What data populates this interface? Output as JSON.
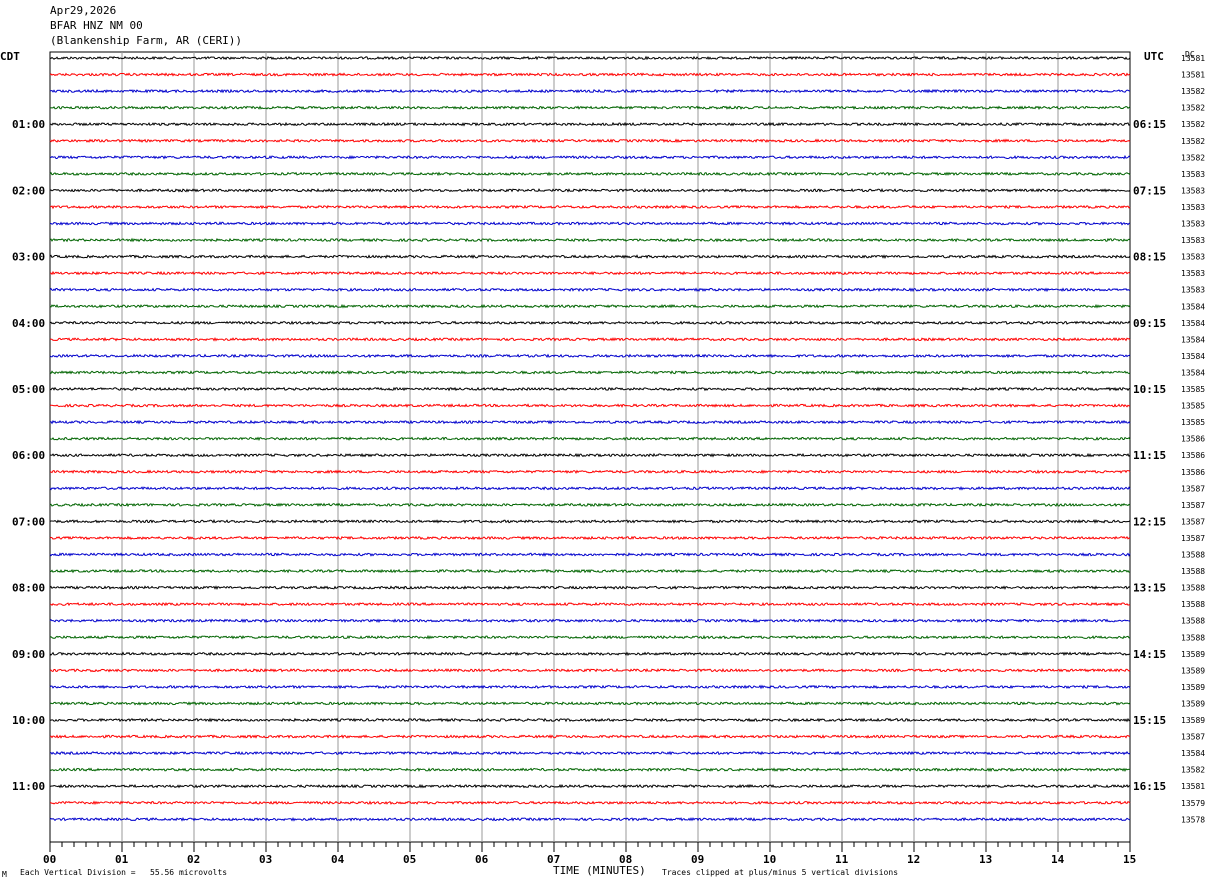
{
  "header": {
    "date": "Apr29,2026",
    "station": "BFAR HNZ NM 00",
    "site": "(Blankenship Farm, AR (CERI))"
  },
  "left_label": "CDT",
  "right_label": "UTC",
  "dc_label": "DC",
  "footer": {
    "corner_mark": "M",
    "scale": "Each Vertical Division =   55.56 microvolts",
    "xlabel": "TIME (MINUTES)",
    "clip_note": "Traces clipped at plus/minus 5 vertical divisions"
  },
  "chart_data": {
    "type": "line",
    "title": "",
    "xlabel": "TIME (MINUTES)",
    "xlim": [
      0,
      15
    ],
    "x_ticks": [
      "00",
      "01",
      "02",
      "03",
      "04",
      "05",
      "06",
      "07",
      "08",
      "09",
      "10",
      "11",
      "12",
      "13",
      "14",
      "15"
    ],
    "trace_colors": [
      "#000000",
      "#ff0000",
      "#0000cc",
      "#006400"
    ],
    "left_hour_labels": [
      "01:00",
      "02:00",
      "03:00",
      "04:00",
      "05:00",
      "06:00",
      "07:00",
      "08:00",
      "09:00",
      "10:00",
      "11:00"
    ],
    "right_hour_labels": [
      "06:15",
      "07:15",
      "08:15",
      "09:15",
      "10:15",
      "11:15",
      "12:15",
      "13:15",
      "14:15",
      "15:15",
      "16:15"
    ],
    "dc_values": [
      13581,
      13581,
      13582,
      13582,
      13582,
      13582,
      13582,
      13583,
      13583,
      13583,
      13583,
      13583,
      13583,
      13583,
      13583,
      13584,
      13584,
      13584,
      13584,
      13584,
      13585,
      13585,
      13585,
      13586,
      13586,
      13586,
      13587,
      13587,
      13587,
      13587,
      13588,
      13588,
      13588,
      13588,
      13588,
      13588,
      13589,
      13589,
      13589,
      13589,
      13589,
      13587,
      13584,
      13582,
      13581,
      13579,
      13578
    ],
    "grid": true
  }
}
